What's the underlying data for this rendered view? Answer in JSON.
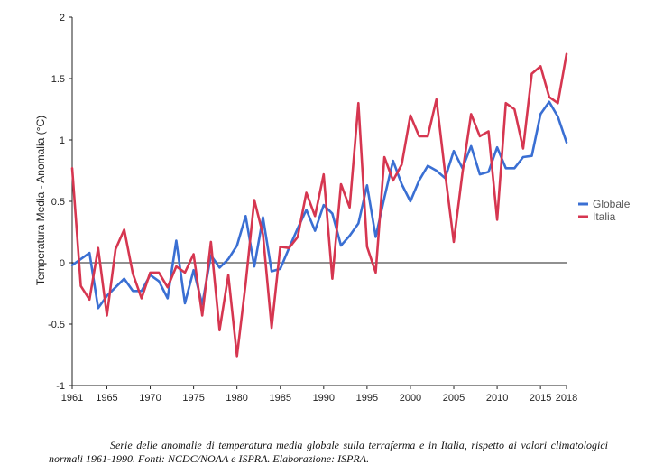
{
  "chart_data": {
    "type": "line",
    "ylabel": "Temperatura Media - Anomalia (°C)",
    "xlabel": "",
    "ylim": [
      -1,
      2
    ],
    "xlim": [
      1961,
      2018
    ],
    "yticks": [
      -1,
      -0.5,
      0,
      0.5,
      1,
      1.5,
      2
    ],
    "ytick_labels": [
      "-1",
      "-0.5",
      "0",
      "0.5",
      "1",
      "1.5",
      "2"
    ],
    "xticks": [
      1961,
      1965,
      1970,
      1975,
      1980,
      1985,
      1990,
      1995,
      2000,
      2005,
      2010,
      2015,
      2018
    ],
    "xtick_labels": [
      "1961",
      "1965",
      "1970",
      "1975",
      "1980",
      "1985",
      "1990",
      "1995",
      "2000",
      "2005",
      "2010",
      "2015",
      "2018"
    ],
    "grid": false,
    "legend_position": "right",
    "x": [
      1961,
      1962,
      1963,
      1964,
      1965,
      1966,
      1967,
      1968,
      1969,
      1970,
      1971,
      1972,
      1973,
      1974,
      1975,
      1976,
      1977,
      1978,
      1979,
      1980,
      1981,
      1982,
      1983,
      1984,
      1985,
      1986,
      1987,
      1988,
      1989,
      1990,
      1991,
      1992,
      1993,
      1994,
      1995,
      1996,
      1997,
      1998,
      1999,
      2000,
      2001,
      2002,
      2003,
      2004,
      2005,
      2006,
      2007,
      2008,
      2009,
      2010,
      2011,
      2012,
      2013,
      2014,
      2015,
      2016,
      2017,
      2018
    ],
    "series": [
      {
        "name": "Globale",
        "color": "#3a6fd3",
        "values": [
          -0.02,
          0.03,
          0.08,
          -0.37,
          -0.27,
          -0.2,
          -0.13,
          -0.23,
          -0.23,
          -0.1,
          -0.15,
          -0.29,
          0.18,
          -0.33,
          -0.06,
          -0.34,
          0.06,
          -0.04,
          0.03,
          0.14,
          0.38,
          -0.03,
          0.37,
          -0.07,
          -0.05,
          0.12,
          0.28,
          0.43,
          0.26,
          0.47,
          0.4,
          0.14,
          0.22,
          0.32,
          0.63,
          0.21,
          0.53,
          0.83,
          0.64,
          0.5,
          0.67,
          0.79,
          0.75,
          0.69,
          0.91,
          0.77,
          0.95,
          0.72,
          0.74,
          0.94,
          0.77,
          0.77,
          0.86,
          0.87,
          1.21,
          1.31,
          1.19,
          0.98
        ]
      },
      {
        "name": "Italia",
        "color": "#d63650",
        "values": [
          0.77,
          -0.19,
          -0.3,
          0.12,
          -0.43,
          0.11,
          0.27,
          -0.09,
          -0.29,
          -0.08,
          -0.08,
          -0.2,
          -0.03,
          -0.08,
          0.07,
          -0.43,
          0.17,
          -0.55,
          -0.1,
          -0.76,
          -0.17,
          0.51,
          0.23,
          -0.53,
          0.13,
          0.12,
          0.21,
          0.57,
          0.38,
          0.72,
          -0.13,
          0.64,
          0.45,
          1.3,
          0.13,
          -0.08,
          0.86,
          0.67,
          0.8,
          1.2,
          1.03,
          1.03,
          1.33,
          0.73,
          0.17,
          0.73,
          1.21,
          1.03,
          1.07,
          0.35,
          1.3,
          1.25,
          0.93,
          1.54,
          1.6,
          1.35,
          1.3,
          1.7
        ]
      }
    ]
  },
  "caption": "Serie delle anomalie di temperatura media globale sulla terraferma e in Italia, rispetto ai valori climatologici normali 1961-1990. Fonti: NCDC/NOAA e ISPRA. Elaborazione: ISPRA."
}
